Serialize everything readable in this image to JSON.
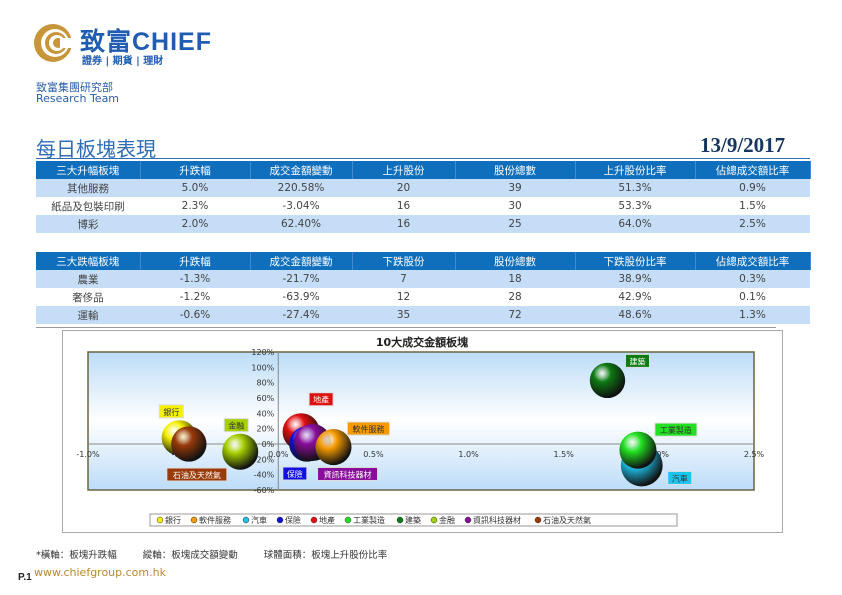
{
  "header": {
    "brand": "致富CHIEF",
    "tagline": "證券 | 期貨 | 理財",
    "department": "致富集團研究部",
    "team": "Research Team"
  },
  "title": "每日板塊表現",
  "date": "13/9/2017",
  "gainers": {
    "headers": [
      "三大升幅板塊",
      "升跌幅",
      "成交金額變動",
      "上升股份",
      "股份總數",
      "上升股份比率",
      "佔總成交額比率"
    ],
    "rows": [
      [
        "其他服務",
        "5.0%",
        "220.58%",
        "20",
        "39",
        "51.3%",
        "0.9%"
      ],
      [
        "紙品及包裝印刷",
        "2.3%",
        "-3.04%",
        "16",
        "30",
        "53.3%",
        "1.5%"
      ],
      [
        "博彩",
        "2.0%",
        "62.40%",
        "16",
        "25",
        "64.0%",
        "2.5%"
      ]
    ]
  },
  "losers": {
    "headers": [
      "三大跌幅板塊",
      "升跌幅",
      "成交金額變動",
      "下跌股份",
      "股份總數",
      "下跌股份比率",
      "佔總成交額比率"
    ],
    "rows": [
      [
        "農業",
        "-1.3%",
        "-21.7%",
        "7",
        "18",
        "38.9%",
        "0.3%"
      ],
      [
        "奢侈品",
        "-1.2%",
        "-63.9%",
        "12",
        "28",
        "42.9%",
        "0.1%"
      ],
      [
        "運輸",
        "-0.6%",
        "-27.4%",
        "35",
        "72",
        "48.6%",
        "1.3%"
      ]
    ]
  },
  "chart_data": {
    "type": "scatter",
    "title": "10大成交金額板塊",
    "xlabel": "板塊升跌幅",
    "ylabel": "板塊成交額變動",
    "xlim": [
      -1.0,
      2.5
    ],
    "ylim": [
      -60,
      120
    ],
    "xticks": [
      "-1.0%",
      "-0.5%",
      "0.0%",
      "0.5%",
      "1.0%",
      "1.5%",
      "2.0%",
      "2.5%"
    ],
    "yticks": [
      "120%",
      "100%",
      "80%",
      "60%",
      "40%",
      "20%",
      "0%",
      "-20%",
      "-40%",
      "-60%"
    ],
    "legend_position": "bottom",
    "series": [
      {
        "name": "銀行",
        "x": -0.52,
        "y": 8,
        "size": 50,
        "color": "#f5f000"
      },
      {
        "name": "軟件服務",
        "x": 0.29,
        "y": -4,
        "size": 52,
        "color": "#f59a00"
      },
      {
        "name": "汽車",
        "x": 1.91,
        "y": -28,
        "size": 70,
        "color": "#1fc4ee"
      },
      {
        "name": "保險",
        "x": 0.15,
        "y": 0,
        "size": 50,
        "color": "#1010e0"
      },
      {
        "name": "地產",
        "x": 0.12,
        "y": 16,
        "size": 55,
        "color": "#e01010"
      },
      {
        "name": "工業製造",
        "x": 1.89,
        "y": -8,
        "size": 55,
        "color": "#22e022"
      },
      {
        "name": "建築",
        "x": 1.73,
        "y": 83,
        "size": 50,
        "color": "#0e7a12"
      },
      {
        "name": "金融",
        "x": -0.2,
        "y": -10,
        "size": 52,
        "color": "#a5d000"
      },
      {
        "name": "資訊科技器材",
        "x": 0.18,
        "y": 2,
        "size": 55,
        "color": "#8a0c9a"
      },
      {
        "name": "石油及天然氣",
        "x": -0.47,
        "y": 0,
        "size": 50,
        "color": "#9a3a0a"
      }
    ]
  },
  "notes": [
    "*橫軸：板塊升跌幅",
    "縱軸：板塊成交額變動",
    "球體面積：板塊上升股份比率"
  ],
  "footer": {
    "page": "P.1",
    "url": "www.chiefgroup.com.hk"
  }
}
